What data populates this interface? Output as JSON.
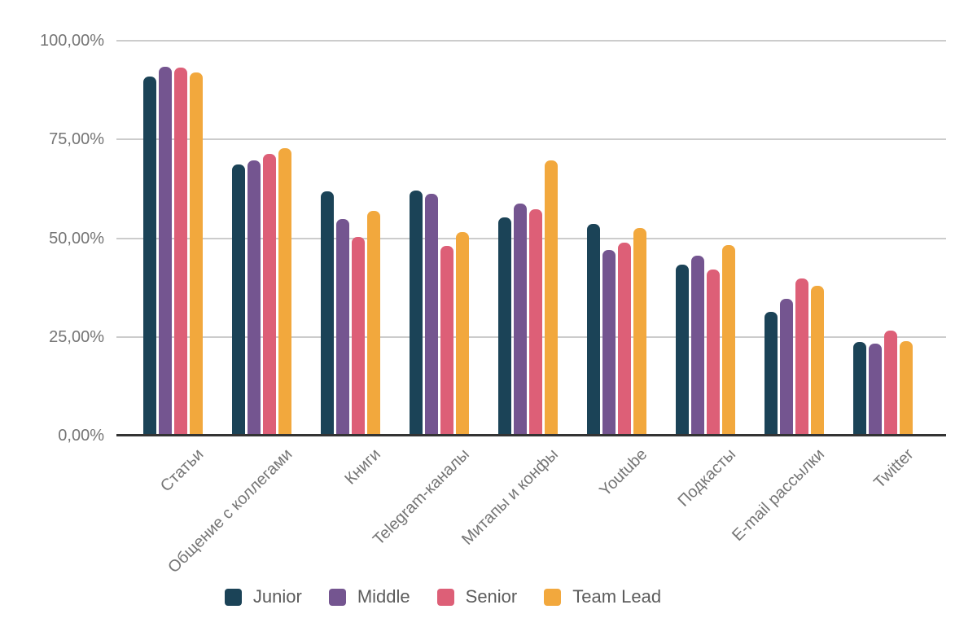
{
  "chart_data": {
    "type": "bar",
    "title": "",
    "categories": [
      "Статьи",
      "Общение с коллегами",
      "Книги",
      "Telegram-каналы",
      "Митапы и конфы",
      "Youtube",
      "Подкасты",
      "E-mail рассылки",
      "Twitter"
    ],
    "series": [
      {
        "name": "Junior",
        "color": "#1b4357",
        "values": [
          90.9,
          68.6,
          61.9,
          62.0,
          55.3,
          53.7,
          43.4,
          31.4,
          23.8
        ]
      },
      {
        "name": "Middle",
        "color": "#745590",
        "values": [
          93.4,
          69.6,
          54.9,
          61.2,
          58.7,
          47.0,
          45.6,
          34.6,
          23.4
        ]
      },
      {
        "name": "Senior",
        "color": "#dd5f77",
        "values": [
          93.1,
          71.3,
          50.4,
          48.0,
          57.4,
          48.8,
          42.1,
          39.7,
          26.5
        ]
      },
      {
        "name": "Team Lead",
        "color": "#f2a83d",
        "values": [
          91.9,
          72.7,
          56.9,
          51.6,
          69.7,
          52.5,
          48.2,
          37.9,
          23.9
        ]
      }
    ],
    "yticks": [
      {
        "label": "100,00%",
        "value": 100
      },
      {
        "label": "75,00%",
        "value": 75
      },
      {
        "label": "50,00%",
        "value": 50
      },
      {
        "label": "25,00%",
        "value": 25
      },
      {
        "label": "0,00%",
        "value": 0
      }
    ],
    "ylim": [
      0,
      100
    ],
    "grid": true,
    "legend_position": "bottom",
    "xlabel": "",
    "ylabel": ""
  },
  "colors": {
    "background": "#ffffff",
    "gridline": "#cccccc",
    "baseline": "#333333",
    "axis_label": "#757575",
    "legend_label": "#5c5c5c"
  }
}
